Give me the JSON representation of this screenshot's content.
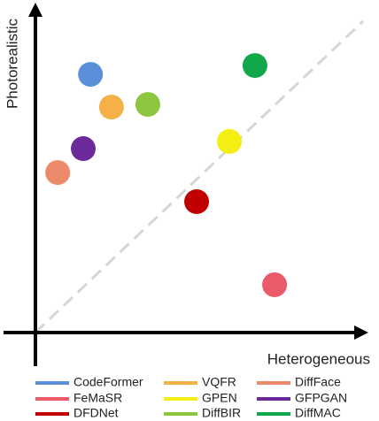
{
  "chart_data": {
    "type": "scatter",
    "x_label": "Heterogeneous",
    "y_label": "Photorealistic",
    "xlim": [
      0,
      10
    ],
    "ylim": [
      0,
      10
    ],
    "series": [
      {
        "name": "CodeFormer",
        "color": "#5b8fd9",
        "x": [
          1.68
        ],
        "values": [
          7.89
        ]
      },
      {
        "name": "VQFR",
        "color": "#f5b048",
        "x": [
          2.32
        ],
        "values": [
          6.89
        ]
      },
      {
        "name": "DiffFace",
        "color": "#ee8a6c",
        "x": [
          0.68
        ],
        "values": [
          4.89
        ]
      },
      {
        "name": "FeMaSR",
        "color": "#ea5a6a",
        "x": [
          7.3
        ],
        "values": [
          1.46
        ]
      },
      {
        "name": "GPEN",
        "color": "#f5ee12",
        "x": [
          5.92
        ],
        "values": [
          5.84
        ]
      },
      {
        "name": "GFPGAN",
        "color": "#6a2a9a",
        "x": [
          1.46
        ],
        "values": [
          5.62
        ]
      },
      {
        "name": "DFDNet",
        "color": "#c00000",
        "x": [
          4.92
        ],
        "values": [
          4.0
        ]
      },
      {
        "name": "DiffBIR",
        "color": "#8dc63f",
        "x": [
          3.43
        ],
        "values": [
          6.97
        ]
      },
      {
        "name": "DiffMAC",
        "color": "#10a84a",
        "x": [
          6.7
        ],
        "values": [
          8.16
        ]
      }
    ]
  }
}
